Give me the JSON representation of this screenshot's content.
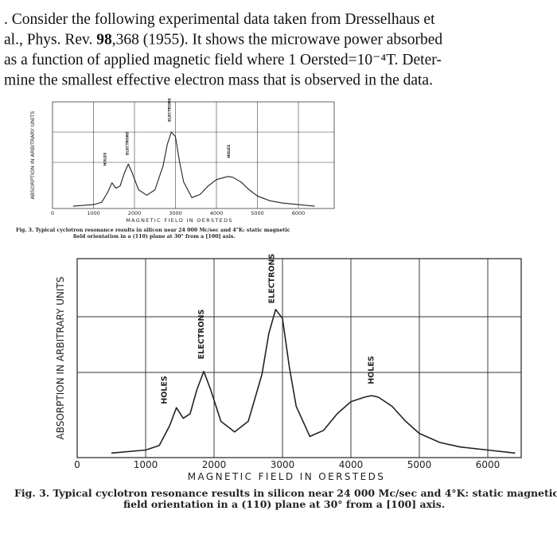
{
  "problem": {
    "lines": [
      [
        ". Consider the following experimental data taken from Dresselhaus et"
      ],
      [
        "al., Phys. Rev. ",
        "98",
        ",368 (1955). It shows the microwave power absorbed"
      ],
      [
        "as a function of applied magnetic field where 1 Oersted=10⁻⁴T. Deter-"
      ],
      [
        "mine the smallest effective electron mass that is observed in the data."
      ]
    ]
  },
  "chart_data": [
    {
      "type": "line",
      "xlabel": "MAGNETIC FIELD IN OERSTEDS",
      "ylabel": "ABSORPTION IN ARBITRARY UNITS",
      "xticks": [
        0,
        1000,
        2000,
        3000,
        4000,
        5000,
        6000
      ],
      "grid": true,
      "color": "#222222",
      "x": [
        500,
        1000,
        1200,
        1350,
        1450,
        1550,
        1650,
        1750,
        1850,
        1950,
        2100,
        2300,
        2500,
        2700,
        2800,
        2900,
        3000,
        3100,
        3200,
        3400,
        3600,
        3800,
        4000,
        4200,
        4300,
        4400,
        4600,
        4800,
        5000,
        5300,
        5600,
        6000,
        6400
      ],
      "values": [
        3,
        5,
        8,
        21,
        33,
        26,
        29,
        45,
        57,
        45,
        24,
        17,
        24,
        55,
        82,
        98,
        92,
        60,
        34,
        14,
        18,
        29,
        37,
        40,
        41,
        40,
        34,
        24,
        16,
        10,
        7,
        5,
        3
      ],
      "annotations": [
        "HOLES",
        "ELECTRONS",
        "ELECTRONS",
        "HOLES"
      ],
      "caption": [
        "Fig. 3. Typical cyclotron resonance results in silicon near 24 000 Mc/sec and 4°K: static magnetic",
        "field orientation in a (110) plane at 30° from a [100] axis."
      ]
    },
    {
      "type": "line",
      "xlabel": "MAGNETIC FIELD IN OERSTEDS",
      "ylabel": "ABSORPTION IN ARBITRARY UNITS",
      "xticks": [
        0,
        1000,
        2000,
        3000,
        4000,
        5000,
        6000
      ],
      "grid": true,
      "color": "#222222",
      "x": [
        500,
        1000,
        1200,
        1350,
        1450,
        1550,
        1650,
        1750,
        1850,
        1950,
        2100,
        2300,
        2500,
        2700,
        2800,
        2900,
        3000,
        3100,
        3200,
        3400,
        3600,
        3800,
        4000,
        4200,
        4300,
        4400,
        4600,
        4800,
        5000,
        5300,
        5600,
        6000,
        6400
      ],
      "values": [
        3,
        5,
        8,
        21,
        33,
        26,
        29,
        45,
        57,
        45,
        24,
        17,
        24,
        55,
        82,
        98,
        92,
        60,
        34,
        14,
        18,
        29,
        37,
        40,
        41,
        40,
        34,
        24,
        16,
        10,
        7,
        5,
        3
      ],
      "annotations": [
        "HOLES",
        "ELECTRONS",
        "ELECTRONS",
        "HOLES"
      ],
      "caption": [
        "Fig. 3. Typical cyclotron resonance results in silicon near 24 000 Mc/sec and 4°K: static magnetic",
        "field orientation in a (110) plane at 30° from a [100] axis."
      ]
    }
  ]
}
